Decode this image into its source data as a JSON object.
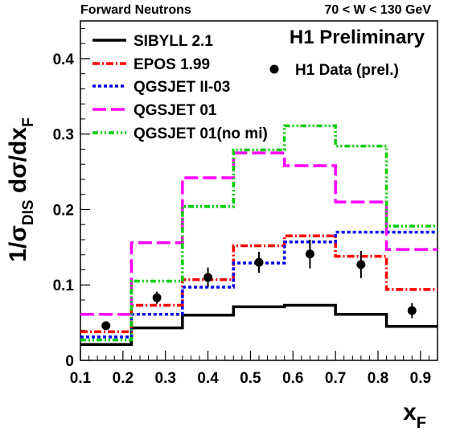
{
  "chart_data": {
    "type": "line",
    "title_left": "Forward Neutrons",
    "title_right": "70 < W < 130 GeV",
    "watermark": "H1 Preliminary",
    "xlabel_main": "x",
    "xlabel_sub": "F",
    "ylabel_pre": "1/",
    "ylabel_sigma": "σ",
    "ylabel_sub": "DIS",
    "ylabel_post": " dσ/dx",
    "ylabel_sub2": "F",
    "xlim": [
      0.1,
      0.94
    ],
    "ylim": [
      0,
      0.45
    ],
    "xticks": [
      0.1,
      0.2,
      0.3,
      0.4,
      0.5,
      0.6,
      0.7,
      0.8,
      0.9
    ],
    "xtick_labels": [
      "0.1",
      "0.2",
      "0.3",
      "0.4",
      "0.5",
      "0.6",
      "0.7",
      "0.8",
      "0.9"
    ],
    "yticks": [
      0,
      0.1,
      0.2,
      0.3,
      0.4
    ],
    "ytick_labels": [
      "0",
      "0.1",
      "0.2",
      "0.3",
      "0.4"
    ],
    "bin_edges": [
      0.1,
      0.22,
      0.34,
      0.46,
      0.58,
      0.7,
      0.82,
      0.94
    ],
    "series": [
      {
        "name": "SIBYLL 2.1",
        "color": "#000000",
        "dash": "solid",
        "values": [
          0.021,
          0.043,
          0.06,
          0.071,
          0.073,
          0.061,
          0.045
        ]
      },
      {
        "name": "EPOS 1.99",
        "color": "#ff0000",
        "dash": "dashdot",
        "values": [
          0.038,
          0.073,
          0.107,
          0.152,
          0.165,
          0.138,
          0.094
        ]
      },
      {
        "name": "QGSJET II-03",
        "color": "#0000ff",
        "dash": "dot",
        "values": [
          0.031,
          0.061,
          0.097,
          0.129,
          0.157,
          0.17,
          0.17
        ]
      },
      {
        "name": "QGSJET 01",
        "color": "#ff00ff",
        "dash": "dash",
        "values": [
          0.061,
          0.156,
          0.242,
          0.275,
          0.258,
          0.21,
          0.147
        ]
      },
      {
        "name": "QGSJET 01(no mi)",
        "color": "#00cc00",
        "dash": "dashdotdot",
        "values": [
          0.027,
          0.105,
          0.204,
          0.279,
          0.311,
          0.284,
          0.178
        ]
      }
    ],
    "data_series": {
      "name": "H1 Data (prel.)",
      "color": "#000000",
      "points": [
        {
          "x": 0.16,
          "y": 0.046,
          "err": 0.004
        },
        {
          "x": 0.28,
          "y": 0.083,
          "err": 0.008
        },
        {
          "x": 0.4,
          "y": 0.11,
          "err": 0.013
        },
        {
          "x": 0.52,
          "y": 0.13,
          "err": 0.014
        },
        {
          "x": 0.64,
          "y": 0.141,
          "err": 0.019
        },
        {
          "x": 0.76,
          "y": 0.127,
          "err": 0.018
        },
        {
          "x": 0.88,
          "y": 0.066,
          "err": 0.01
        }
      ]
    }
  }
}
